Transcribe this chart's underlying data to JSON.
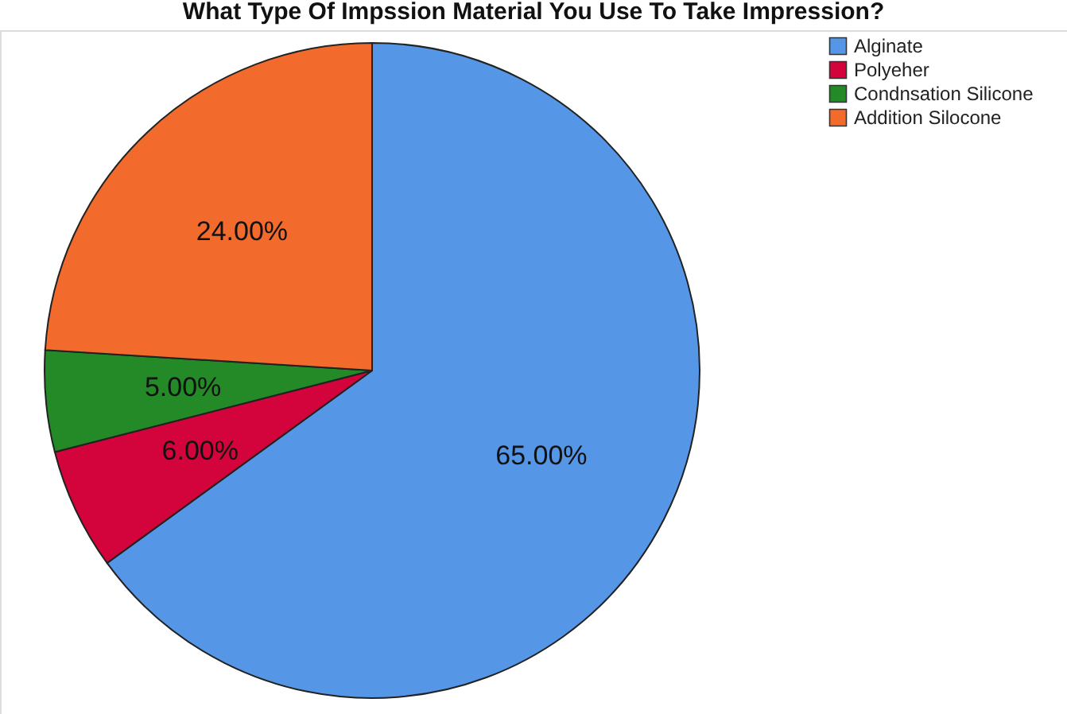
{
  "chart_data": {
    "type": "pie",
    "title": "What Type Of Impssion Material You Use To Take Impression?",
    "categories": [
      "Alginate",
      "Polyeher",
      "Condnsation Silicone",
      "Addition Silocone"
    ],
    "values": [
      65,
      6,
      5,
      24
    ],
    "colors": [
      "#5596e6",
      "#d3043b",
      "#238a27",
      "#f26a2c"
    ],
    "value_labels": [
      "65.00%",
      "6.00%",
      "5.00%",
      "24.00%"
    ],
    "legend": "top right"
  }
}
